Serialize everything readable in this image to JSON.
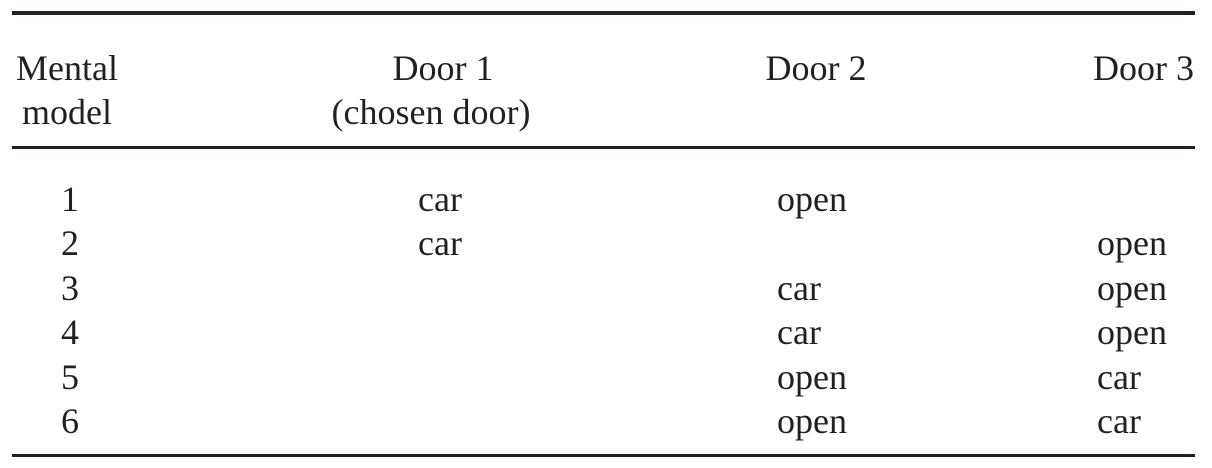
{
  "table": {
    "headers": {
      "model_line1": "Mental",
      "model_line2": "model",
      "door1_line1": "Door 1",
      "door1_line2": "(chosen door)",
      "door2": "Door 2",
      "door3": "Door 3"
    },
    "rows": [
      {
        "model": "1",
        "door1": "car",
        "door2": "open",
        "door3": ""
      },
      {
        "model": "2",
        "door1": "car",
        "door2": "",
        "door3": "open"
      },
      {
        "model": "3",
        "door1": "",
        "door2": "car",
        "door3": "open"
      },
      {
        "model": "4",
        "door1": "",
        "door2": "car",
        "door3": "open"
      },
      {
        "model": "5",
        "door1": "",
        "door2": "open",
        "door3": "car"
      },
      {
        "model": "6",
        "door1": "",
        "door2": "open",
        "door3": "car"
      }
    ]
  }
}
